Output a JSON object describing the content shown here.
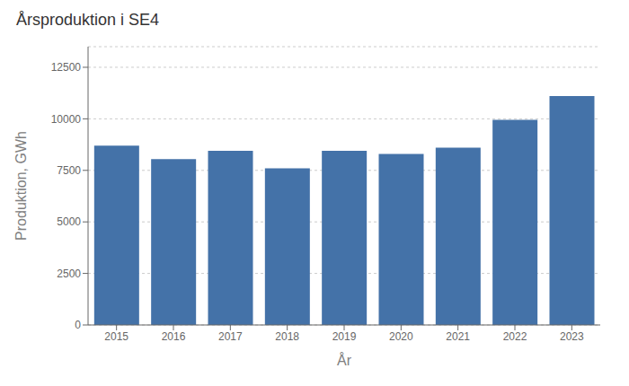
{
  "chart_data": {
    "type": "bar",
    "title": "Årsproduktion i SE4",
    "xlabel": "År",
    "ylabel": "Produktion, GWh",
    "categories": [
      "2015",
      "2016",
      "2017",
      "2018",
      "2019",
      "2020",
      "2021",
      "2022",
      "2023"
    ],
    "values": [
      8700,
      8050,
      8450,
      7600,
      8450,
      8300,
      8600,
      9950,
      11100
    ],
    "color": "#4472a8",
    "ylim": [
      0,
      13500
    ],
    "yticks": [
      0,
      2500,
      5000,
      7500,
      10000,
      12500
    ],
    "grid": true
  }
}
